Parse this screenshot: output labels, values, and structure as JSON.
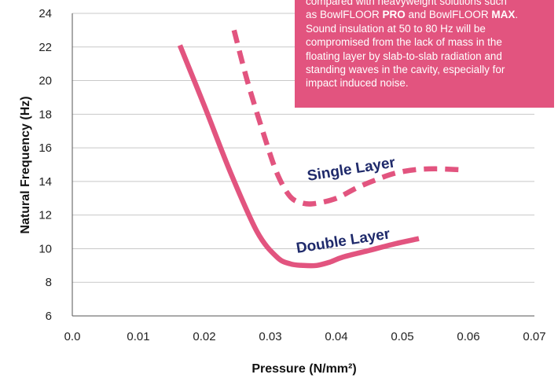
{
  "chart_data": {
    "type": "line",
    "xlabel": "Pressure (N/mm²)",
    "ylabel": "Natural Frequency (Hz)",
    "xlim": [
      0,
      0.07
    ],
    "ylim": [
      6,
      24
    ],
    "x_ticks": [
      "0.0",
      "0.01",
      "0.02",
      "0.03",
      "0.04",
      "0.05",
      "0.06",
      "0.07"
    ],
    "y_ticks": [
      "6",
      "8",
      "10",
      "12",
      "14",
      "16",
      "18",
      "20",
      "22",
      "24"
    ],
    "grid": "horizontal",
    "legend": "none",
    "series": [
      {
        "name": "Single Layer",
        "style": "dashed",
        "color": "#e2547f",
        "points": [
          [
            0.0245,
            23.0
          ],
          [
            0.0265,
            20.0
          ],
          [
            0.029,
            16.8
          ],
          [
            0.031,
            14.5
          ],
          [
            0.033,
            13.1
          ],
          [
            0.035,
            12.7
          ],
          [
            0.037,
            12.7
          ],
          [
            0.04,
            13.0
          ],
          [
            0.043,
            13.6
          ],
          [
            0.046,
            14.1
          ],
          [
            0.049,
            14.5
          ],
          [
            0.052,
            14.7
          ],
          [
            0.055,
            14.75
          ],
          [
            0.0585,
            14.7
          ]
        ]
      },
      {
        "name": "Double Layer",
        "style": "solid",
        "color": "#e2547f",
        "points": [
          [
            0.0163,
            22.1
          ],
          [
            0.02,
            18.5
          ],
          [
            0.024,
            14.5
          ],
          [
            0.028,
            11.0
          ],
          [
            0.031,
            9.5
          ],
          [
            0.033,
            9.1
          ],
          [
            0.035,
            9.0
          ],
          [
            0.037,
            9.0
          ],
          [
            0.039,
            9.2
          ],
          [
            0.041,
            9.5
          ],
          [
            0.045,
            9.9
          ],
          [
            0.049,
            10.3
          ],
          [
            0.0525,
            10.6
          ]
        ]
      }
    ],
    "annotations": {
      "note_lines": [
        {
          "segments": [
            {
              "text": "compared with heavyweight solutions such",
              "bold": false
            }
          ]
        },
        {
          "segments": [
            {
              "text": "as BowlFLOOR ",
              "bold": false
            },
            {
              "text": "PRO",
              "bold": true
            },
            {
              "text": " and BowlFLOOR ",
              "bold": false
            },
            {
              "text": "MAX",
              "bold": true
            },
            {
              "text": ".",
              "bold": false
            }
          ]
        },
        {
          "segments": [
            {
              "text": "Sound insulation at 50 to 80 Hz will be",
              "bold": false
            }
          ]
        },
        {
          "segments": [
            {
              "text": "compromised from the lack of mass in the",
              "bold": false
            }
          ]
        },
        {
          "segments": [
            {
              "text": "floating layer by slab-to-slab radiation and",
              "bold": false
            }
          ]
        },
        {
          "segments": [
            {
              "text": "standing waves in the cavity, especially for",
              "bold": false
            }
          ]
        },
        {
          "segments": [
            {
              "text": "impact induced noise.",
              "bold": false
            }
          ]
        }
      ]
    }
  }
}
